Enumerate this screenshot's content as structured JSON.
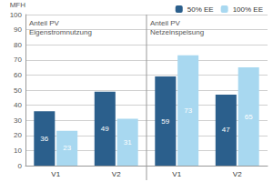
{
  "chart_data": {
    "type": "bar",
    "y_label": "MFH",
    "categories": [
      "V1",
      "V2",
      "V1",
      "V2"
    ],
    "series": [
      {
        "name": "50% EE",
        "color": "#2b5f8c",
        "values": [
          36,
          49,
          59,
          47
        ]
      },
      {
        "name": "100% EE",
        "color": "#a8d8f0",
        "values": [
          23,
          31,
          73,
          65
        ]
      }
    ],
    "annotations": [
      "Anteil PV\nEigenstromnutzung",
      "Anteil PV\nNetzeinspeisung"
    ],
    "ylim": [
      0,
      100
    ],
    "yticks": [
      0,
      10,
      20,
      30,
      40,
      50,
      60,
      70,
      80,
      90,
      100
    ],
    "grid": true,
    "legend": "top-right",
    "data_labels": true
  }
}
